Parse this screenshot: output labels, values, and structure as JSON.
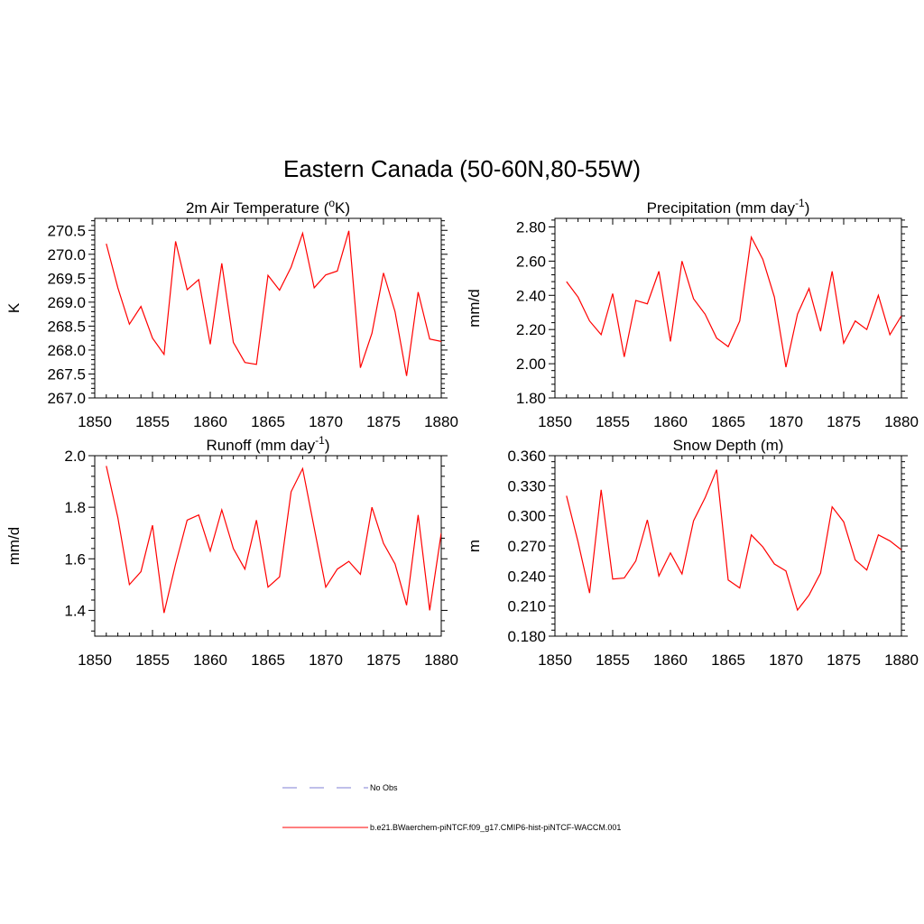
{
  "figure_title": "Eastern Canada (50-60N,80-55W)",
  "colors": {
    "model_line": "#ff0000",
    "obs_line": "#9999dd",
    "axis": "#000000"
  },
  "legend": {
    "placement": "bottom-center",
    "entries": [
      {
        "label": "No Obs",
        "style": "dashed",
        "color": "#9999dd"
      },
      {
        "label": "b.e21.BWaerchem-piNTCF.f09_g17.CMIP6-hist-piNTCF-WACCM.001",
        "style": "solid",
        "color": "#ff0000"
      }
    ]
  },
  "chart_data": [
    {
      "type": "line",
      "title": "2m Air Temperature (",
      "title_super": "o",
      "title_after": "K)",
      "ylabel": "K",
      "xlim": [
        1850,
        1880
      ],
      "ylim": [
        267.0,
        270.75
      ],
      "x_ticks": [
        "1850",
        "1855",
        "1860",
        "1865",
        "1870",
        "1875",
        "1880"
      ],
      "y_ticks": [
        "267.0",
        "267.5",
        "268.0",
        "268.5",
        "269.0",
        "269.5",
        "270.0",
        "270.5"
      ],
      "x": [
        1851,
        1852,
        1853,
        1854,
        1855,
        1856,
        1857,
        1858,
        1859,
        1860,
        1861,
        1862,
        1863,
        1864,
        1865,
        1866,
        1867,
        1868,
        1869,
        1870,
        1871,
        1872,
        1873,
        1874,
        1875,
        1876,
        1877,
        1878,
        1879,
        1880
      ],
      "series": [
        {
          "values": [
            270.22,
            269.3,
            268.54,
            268.91,
            268.25,
            267.91,
            270.27,
            269.26,
            269.47,
            268.12,
            269.81,
            268.16,
            267.74,
            267.7,
            269.56,
            269.25,
            269.73,
            270.44,
            269.3,
            269.57,
            269.65,
            270.49,
            267.63,
            268.35,
            269.61,
            268.8,
            267.46,
            269.21,
            268.23,
            268.18
          ]
        }
      ]
    },
    {
      "type": "line",
      "title": "Precipitation (mm day",
      "title_super": "-1",
      "title_after": ")",
      "ylabel": "mm/d",
      "xlim": [
        1850,
        1880
      ],
      "ylim": [
        1.8,
        2.85
      ],
      "x_ticks": [
        "1850",
        "1855",
        "1860",
        "1865",
        "1870",
        "1875",
        "1880"
      ],
      "y_ticks": [
        "1.80",
        "2.00",
        "2.20",
        "2.40",
        "2.60",
        "2.80"
      ],
      "x": [
        1851,
        1852,
        1853,
        1854,
        1855,
        1856,
        1857,
        1858,
        1859,
        1860,
        1861,
        1862,
        1863,
        1864,
        1865,
        1866,
        1867,
        1868,
        1869,
        1870,
        1871,
        1872,
        1873,
        1874,
        1875,
        1876,
        1877,
        1878,
        1879,
        1880
      ],
      "series": [
        {
          "values": [
            2.48,
            2.39,
            2.25,
            2.17,
            2.41,
            2.04,
            2.37,
            2.35,
            2.54,
            2.13,
            2.6,
            2.38,
            2.29,
            2.15,
            2.1,
            2.25,
            2.74,
            2.61,
            2.39,
            1.98,
            2.29,
            2.44,
            2.19,
            2.54,
            2.12,
            2.25,
            2.2,
            2.4,
            2.17,
            2.28
          ]
        }
      ]
    },
    {
      "type": "line",
      "title": "Runoff (mm day",
      "title_super": "-1",
      "title_after": ")",
      "ylabel": "mm/d",
      "xlim": [
        1850,
        1880
      ],
      "ylim": [
        1.3,
        2.0
      ],
      "x_ticks": [
        "1850",
        "1855",
        "1860",
        "1865",
        "1870",
        "1875",
        "1880"
      ],
      "y_ticks": [
        "1.4",
        "1.6",
        "1.8",
        "2.0"
      ],
      "x": [
        1851,
        1852,
        1853,
        1854,
        1855,
        1856,
        1857,
        1858,
        1859,
        1860,
        1861,
        1862,
        1863,
        1864,
        1865,
        1866,
        1867,
        1868,
        1869,
        1870,
        1871,
        1872,
        1873,
        1874,
        1875,
        1876,
        1877,
        1878,
        1879,
        1880
      ],
      "series": [
        {
          "values": [
            1.96,
            1.76,
            1.5,
            1.55,
            1.73,
            1.39,
            1.58,
            1.75,
            1.77,
            1.63,
            1.79,
            1.64,
            1.56,
            1.75,
            1.49,
            1.53,
            1.86,
            1.95,
            1.72,
            1.49,
            1.56,
            1.59,
            1.54,
            1.8,
            1.66,
            1.58,
            1.42,
            1.77,
            1.4,
            1.7
          ]
        }
      ]
    },
    {
      "type": "line",
      "title": "Snow Depth (m)",
      "title_super": "",
      "title_after": "",
      "ylabel": "m",
      "xlim": [
        1850,
        1880
      ],
      "ylim": [
        0.18,
        0.36
      ],
      "x_ticks": [
        "1850",
        "1855",
        "1860",
        "1865",
        "1870",
        "1875",
        "1880"
      ],
      "y_ticks": [
        "0.180",
        "0.210",
        "0.240",
        "0.270",
        "0.300",
        "0.330",
        "0.360"
      ],
      "x": [
        1851,
        1852,
        1853,
        1854,
        1855,
        1856,
        1857,
        1858,
        1859,
        1860,
        1861,
        1862,
        1863,
        1864,
        1865,
        1866,
        1867,
        1868,
        1869,
        1870,
        1871,
        1872,
        1873,
        1874,
        1875,
        1876,
        1877,
        1878,
        1879,
        1880
      ],
      "series": [
        {
          "values": [
            0.32,
            0.274,
            0.223,
            0.326,
            0.237,
            0.238,
            0.255,
            0.296,
            0.24,
            0.263,
            0.242,
            0.295,
            0.318,
            0.346,
            0.236,
            0.228,
            0.281,
            0.269,
            0.252,
            0.245,
            0.206,
            0.221,
            0.243,
            0.309,
            0.294,
            0.256,
            0.246,
            0.281,
            0.275,
            0.266
          ]
        }
      ]
    }
  ]
}
